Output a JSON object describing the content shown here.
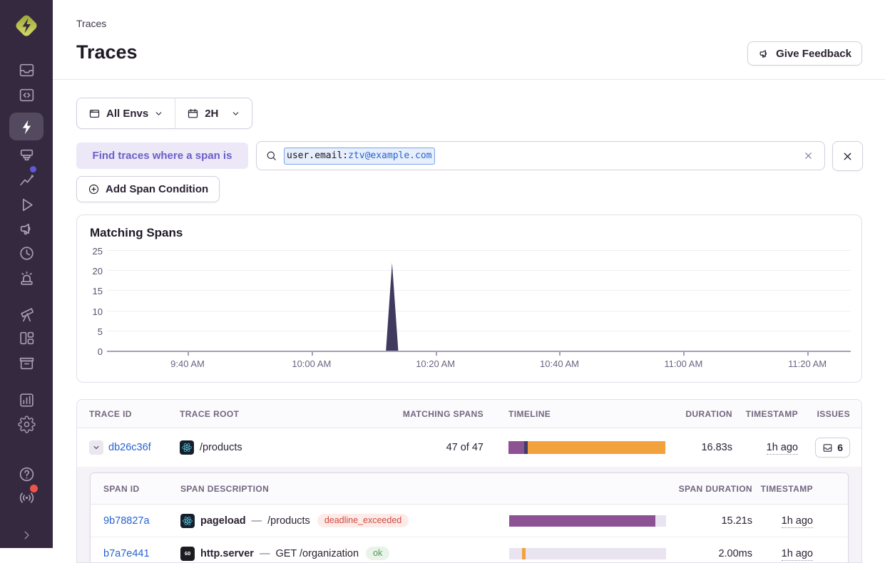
{
  "header": {
    "breadcrumb": "Traces",
    "title": "Traces",
    "feedback_button": "Give Feedback"
  },
  "filters": {
    "environment": "All Envs",
    "time_range": "2H"
  },
  "span_filter": {
    "label": "Find traces where a span is",
    "search_token": {
      "key": "user.email:",
      "value": "ztv@example.com"
    },
    "add_condition": "Add Span Condition"
  },
  "chart_data": {
    "type": "area",
    "title": "Matching Spans",
    "y_ticks": [
      0,
      5,
      10,
      15,
      20,
      25
    ],
    "ylim": [
      0,
      25
    ],
    "x_ticks": [
      "9:40 AM",
      "10:00 AM",
      "10:20 AM",
      "10:40 AM",
      "11:00 AM",
      "11:20 AM"
    ],
    "x_range": [
      "9:27 AM",
      "11:27 AM"
    ],
    "grid": true,
    "legend": false,
    "series": [
      {
        "name": "Matching Spans",
        "color": "#3f3a5e",
        "points": [
          {
            "x": "9:27 AM",
            "y": 0
          },
          {
            "x": "10:12 AM",
            "y": 0
          },
          {
            "x": "10:13 AM",
            "y": 22
          },
          {
            "x": "10:14 AM",
            "y": 0
          },
          {
            "x": "11:27 AM",
            "y": 0
          }
        ]
      }
    ]
  },
  "trace_table": {
    "columns": [
      "TRACE ID",
      "TRACE ROOT",
      "MATCHING SPANS",
      "TIMELINE",
      "DURATION",
      "TIMESTAMP",
      "ISSUES"
    ],
    "rows": [
      {
        "trace_id": "db26c36f",
        "platform": "react",
        "trace_root": "/products",
        "matching_spans": "47 of 47",
        "timeline_segments": [
          {
            "color": "#8d5294",
            "width_pct": 10
          },
          {
            "color": "#423d66",
            "width_pct": 2.3
          },
          {
            "color": "#f2a23c",
            "width_pct": 87.7
          }
        ],
        "duration": "16.83s",
        "timestamp": "1h ago",
        "issues_count": "6",
        "expanded": true
      }
    ]
  },
  "span_table": {
    "columns": [
      "SPAN ID",
      "SPAN DESCRIPTION",
      "SPAN DURATION",
      "TIMESTAMP"
    ],
    "rows": [
      {
        "span_id": "9b78827a",
        "platform": "react",
        "op": "pageload",
        "separator": "—",
        "description": "/products",
        "status": "deadline_exceeded",
        "status_type": "error",
        "bar": {
          "offset_pct": 0,
          "fill_pct": 93,
          "color": "#8d5294"
        },
        "duration": "15.21s",
        "timestamp": "1h ago"
      },
      {
        "span_id": "b7a7e441",
        "platform": "go",
        "op": "http.server",
        "separator": "—",
        "description": "GET /organization",
        "status": "ok",
        "status_type": "ok",
        "bar": {
          "offset_pct": 8,
          "fill_pct": 2.3,
          "color": "#f2a23c"
        },
        "duration": "2.00ms",
        "timestamp": "1h ago"
      }
    ]
  },
  "sidebar": {
    "active_item": "performance",
    "icons": [
      "issues-inbox",
      "explore-code",
      "performance-bolt",
      "projects-projector",
      "insights-chart",
      "replays-play",
      "feedback-megaphone",
      "releases-clock",
      "alerts-siren",
      "discover-telescope",
      "dashboards-layout",
      "stories-archive",
      "stats-bars",
      "settings-gear",
      "help-question",
      "service-broadcast",
      "collapse-chevron"
    ],
    "notifications": {
      "insights_dot": "#5b5bd6",
      "broadcast_dot": "#f05349"
    }
  },
  "icons": {
    "logo": "bolt-diamond",
    "search": "magnifier",
    "clear": "x",
    "close": "x",
    "environment": "window",
    "time": "calendar",
    "add_condition": "plus-circle",
    "feedback": "megaphone",
    "issues_badge": "inbox",
    "expand": "chevron-down",
    "platform_react": "react-atom",
    "platform_go": "go"
  },
  "colors": {
    "sidebar_bg": "#35293f",
    "accent_purple": "#6a5fc7",
    "link_blue": "#2562d4",
    "orange": "#f2a23c",
    "plum": "#8d5294",
    "navy": "#423d66",
    "error_red": "#cf4a3f",
    "ok_green": "#4f9a51",
    "spike": "#3f3a5e"
  }
}
